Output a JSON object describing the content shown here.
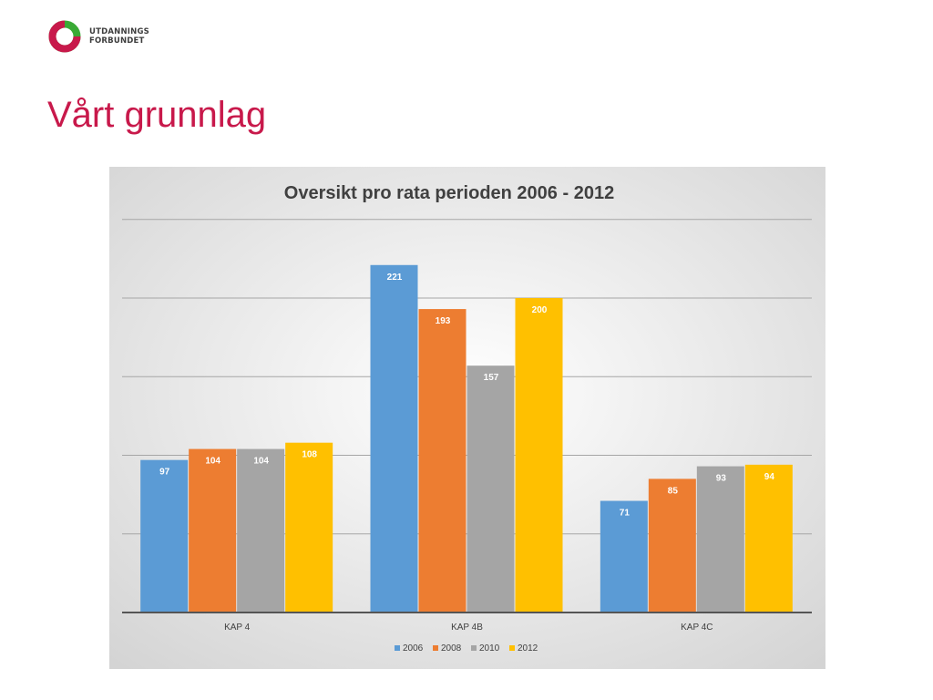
{
  "slide": {
    "title": "Vårt grunnlag"
  },
  "logo": {
    "line1": "UTDANNINGS",
    "line2": "FORBUNDET",
    "colors": [
      "#c8194b",
      "#3aaa35"
    ]
  },
  "chart_data": {
    "type": "bar",
    "title": "Oversikt pro rata perioden 2006 - 2012",
    "xlabel": "",
    "ylabel": "",
    "categories": [
      "KAP 4",
      "KAP 4B",
      "KAP 4C"
    ],
    "series": [
      {
        "name": "2006",
        "color": "#5b9bd5",
        "values": [
          97,
          221,
          71
        ]
      },
      {
        "name": "2008",
        "color": "#ed7d31",
        "values": [
          104,
          193,
          85
        ]
      },
      {
        "name": "2010",
        "color": "#a5a5a5",
        "values": [
          104,
          157,
          93
        ]
      },
      {
        "name": "2012",
        "color": "#ffc000",
        "values": [
          108,
          200,
          94
        ]
      }
    ],
    "ylim": [
      0,
      250
    ],
    "grid": true,
    "legend_position": "bottom",
    "data_labels": true
  }
}
